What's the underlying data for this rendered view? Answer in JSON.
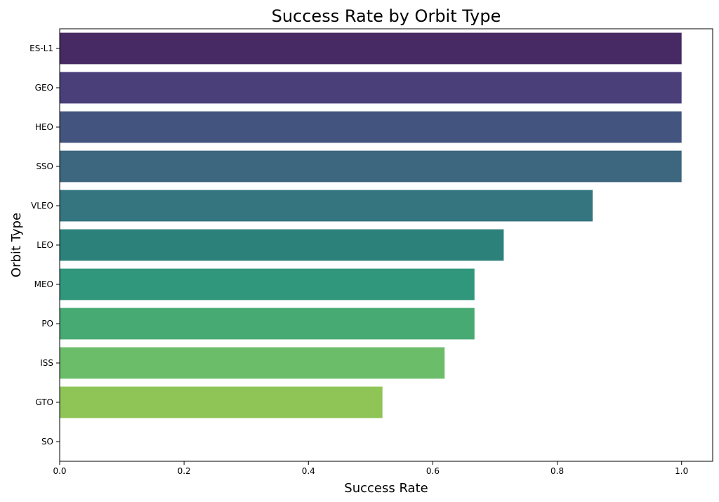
{
  "chart_data": {
    "type": "bar",
    "orientation": "horizontal",
    "title": "Success Rate by Orbit Type",
    "xlabel": "Success Rate",
    "ylabel": "Orbit Type",
    "xlim": [
      0,
      1.05
    ],
    "xticks": [
      0.0,
      0.2,
      0.4,
      0.6,
      0.8,
      1.0
    ],
    "xtick_labels": [
      "0.0",
      "0.2",
      "0.4",
      "0.6",
      "0.8",
      "1.0"
    ],
    "grid": false,
    "legend": "none",
    "categories": [
      "ES-L1",
      "GEO",
      "HEO",
      "SSO",
      "VLEO",
      "LEO",
      "MEO",
      "PO",
      "ISS",
      "GTO",
      "SO"
    ],
    "values": [
      1.0,
      1.0,
      1.0,
      1.0,
      0.857,
      0.714,
      0.667,
      0.667,
      0.619,
      0.519,
      0.0
    ],
    "colors": [
      "#472a63",
      "#4b3f7a",
      "#43557f",
      "#3d667f",
      "#34757f",
      "#2c827a",
      "#31977c",
      "#47aa73",
      "#6bbd6a",
      "#8fc456",
      "#b5d44a"
    ]
  }
}
